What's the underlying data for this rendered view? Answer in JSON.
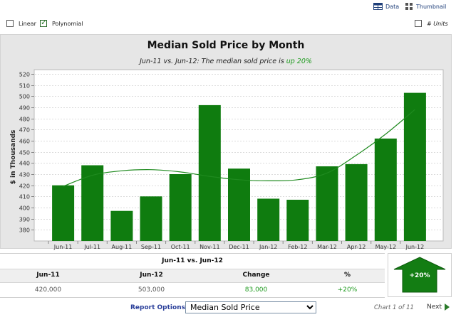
{
  "toolbar": {
    "data_label": "Data",
    "thumbnail_label": "Thumbnail",
    "linear_label": "Linear",
    "linear_checked": false,
    "polynomial_label": "Polynomial",
    "polynomial_checked": true,
    "units_label": "# Units",
    "units_checked": false
  },
  "chart_data": {
    "type": "bar",
    "title": "Median Sold Price by Month",
    "subtitle_prefix": "Jun-11 vs. Jun-12: The median sold price is ",
    "subtitle_highlight": "up 20%",
    "ylabel": "$ in Thousands",
    "xlabel": "",
    "categories": [
      "Jun-11",
      "Jul-11",
      "Aug-11",
      "Sep-11",
      "Oct-11",
      "Nov-11",
      "Dec-11",
      "Jan-12",
      "Feb-12",
      "Mar-12",
      "Apr-12",
      "May-12",
      "Jun-12"
    ],
    "values": [
      420,
      438,
      397,
      410,
      430,
      492,
      435,
      408,
      407,
      437,
      439,
      462,
      503
    ],
    "trend": [
      419,
      429,
      433,
      434,
      432,
      428,
      425,
      424,
      425,
      431,
      447,
      466,
      488
    ],
    "trend_type": "polynomial",
    "ylim": [
      370,
      520
    ],
    "yticks": [
      380,
      390,
      400,
      410,
      420,
      430,
      440,
      450,
      460,
      470,
      480,
      490,
      500,
      510,
      520
    ],
    "bar_color": "#0f7c0f",
    "trend_color": "#1f8a1f",
    "grid": true
  },
  "comparison": {
    "title": "Jun-11 vs. Jun-12",
    "headers": [
      "Jun-11",
      "Jun-12",
      "Change",
      "%"
    ],
    "values": [
      "420,000",
      "503,000",
      "83,000",
      "+20%"
    ],
    "badge": "+20%",
    "up_color": "#1e9a1e"
  },
  "footer": {
    "report_options_label": "Report Options",
    "selected_metric": "Median Sold Price",
    "chart_position": "Chart 1 of 11",
    "next_label": "Next"
  }
}
